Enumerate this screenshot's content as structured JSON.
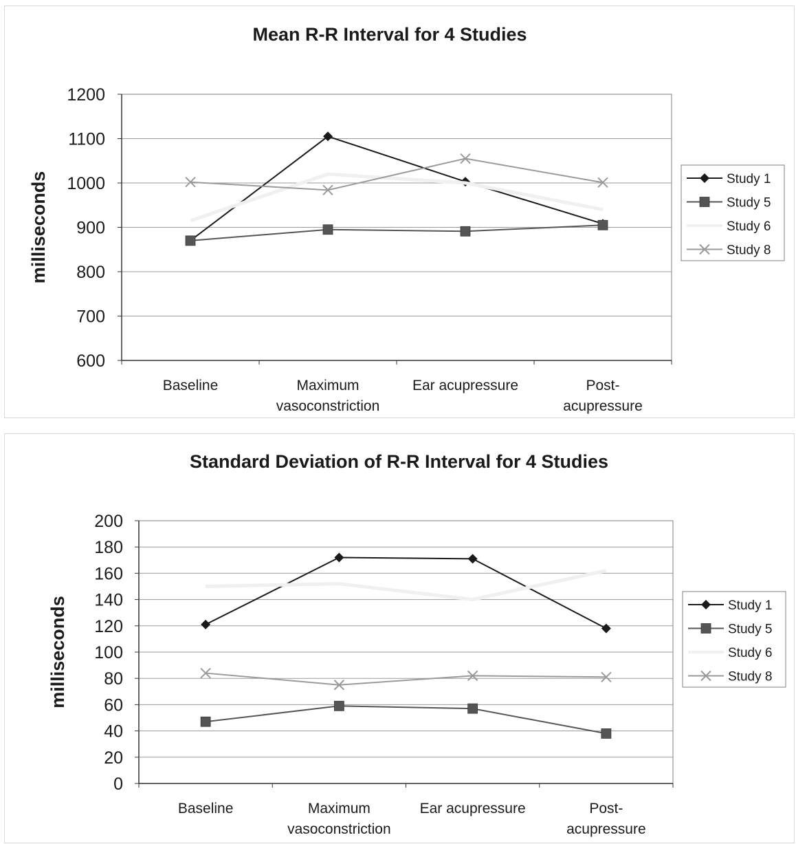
{
  "chart_data": [
    {
      "type": "line",
      "title": "Mean R-R Interval for 4 Studies",
      "xlabel": "",
      "ylabel": "milliseconds",
      "ylim": [
        600,
        1200
      ],
      "yticks": [
        "600",
        "700",
        "800",
        "900",
        "1000",
        "1100",
        "1200"
      ],
      "grid": "horizontal",
      "legend_position": "right",
      "categories": [
        [
          "Baseline"
        ],
        [
          "Maximum",
          "vasoconstriction"
        ],
        [
          "Ear acupressure"
        ],
        [
          "Post-",
          "acupressure"
        ]
      ],
      "series": [
        {
          "name": "Study 1",
          "marker": "diamond",
          "color": "#1a1a1a",
          "values": [
            870,
            1105,
            1003,
            908
          ]
        },
        {
          "name": "Study 5",
          "marker": "square",
          "color": "#555555",
          "values": [
            870,
            895,
            891,
            905
          ]
        },
        {
          "name": "Study 6",
          "marker": "none",
          "color": "#f0f0f0",
          "values": [
            915,
            1020,
            1000,
            940
          ]
        },
        {
          "name": "Study 8",
          "marker": "x",
          "color": "#9a9a9a",
          "values": [
            1002,
            984,
            1055,
            1001
          ]
        }
      ]
    },
    {
      "type": "line",
      "title": "Standard Deviation of R-R Interval for 4 Studies",
      "xlabel": "",
      "ylabel": "milliseconds",
      "ylim": [
        0,
        200
      ],
      "yticks": [
        "0",
        "20",
        "40",
        "60",
        "80",
        "100",
        "120",
        "140",
        "160",
        "180",
        "200"
      ],
      "grid": "horizontal",
      "legend_position": "right",
      "categories": [
        [
          "Baseline"
        ],
        [
          "Maximum",
          "vasoconstriction"
        ],
        [
          "Ear acupressure"
        ],
        [
          "Post-",
          "acupressure"
        ]
      ],
      "series": [
        {
          "name": "Study 1",
          "marker": "diamond",
          "color": "#1a1a1a",
          "values": [
            121,
            172,
            171,
            118
          ]
        },
        {
          "name": "Study 5",
          "marker": "square",
          "color": "#555555",
          "values": [
            47,
            59,
            57,
            38
          ]
        },
        {
          "name": "Study 6",
          "marker": "none",
          "color": "#f0f0f0",
          "values": [
            150,
            152,
            140,
            162
          ]
        },
        {
          "name": "Study 8",
          "marker": "x",
          "color": "#9a9a9a",
          "values": [
            84,
            75,
            82,
            81
          ]
        }
      ]
    }
  ]
}
